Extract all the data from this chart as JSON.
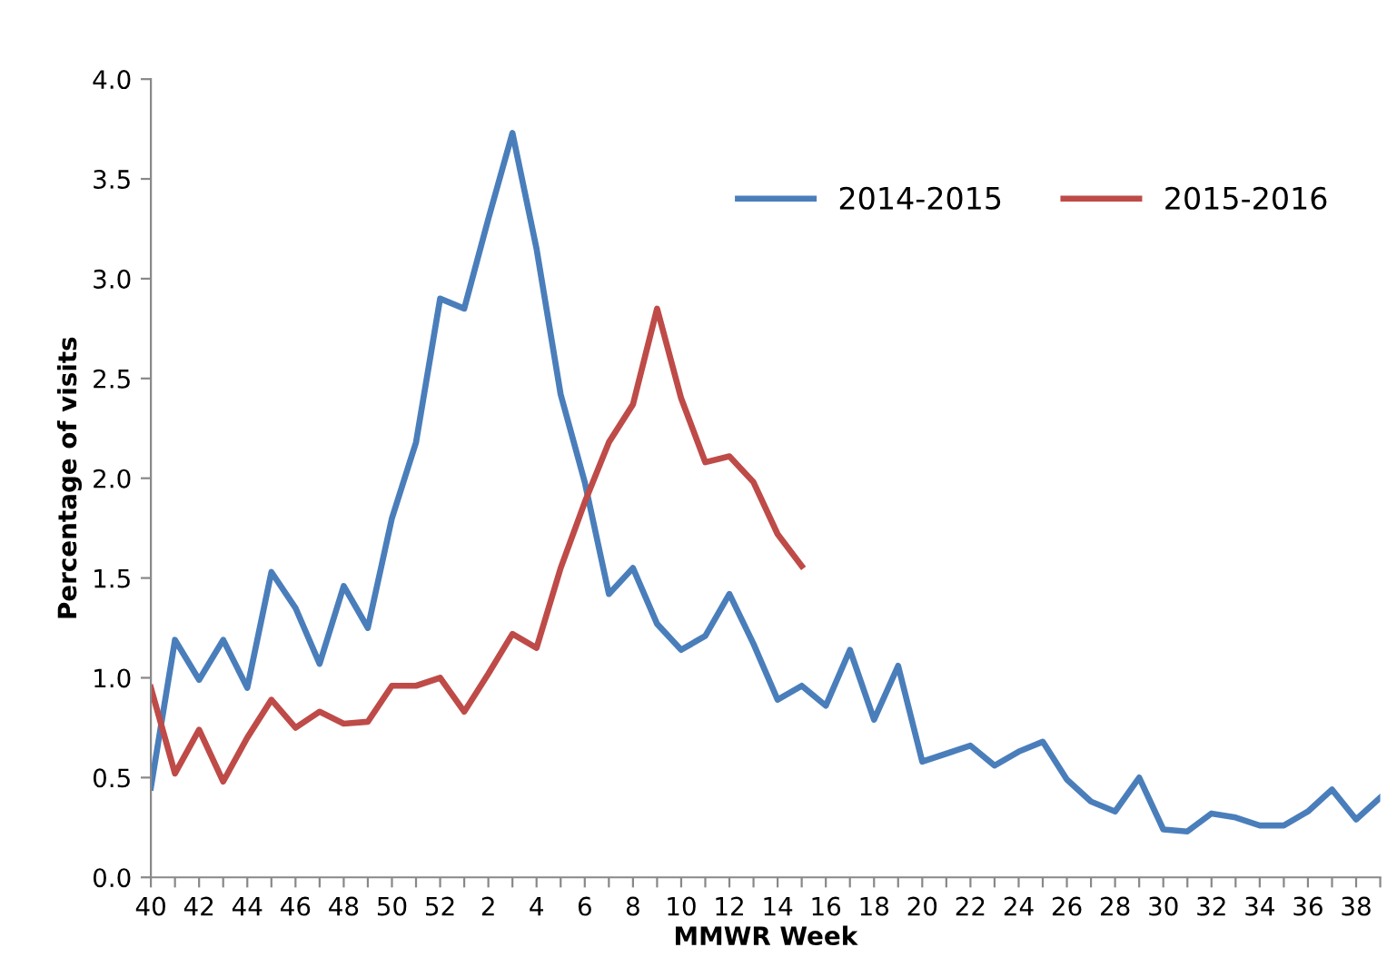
{
  "chart_data": {
    "type": "line",
    "xlabel": "MMWR Week",
    "ylabel": "Percentage of visits",
    "categories": [
      "40",
      null,
      "42",
      null,
      "44",
      null,
      "46",
      null,
      "48",
      null,
      "50",
      null,
      "52",
      null,
      "2",
      null,
      "4",
      null,
      "6",
      null,
      "8",
      null,
      "10",
      null,
      "12",
      null,
      "14",
      null,
      "16",
      null,
      "18",
      null,
      "20",
      null,
      "22",
      null,
      "24",
      null,
      "26",
      null,
      "28",
      null,
      "30",
      null,
      "32",
      null,
      "34",
      null,
      "36",
      null,
      "38",
      null
    ],
    "series": [
      {
        "name": "2014-2015",
        "color": "#4a7ebb",
        "values": [
          0.45,
          1.19,
          0.99,
          1.19,
          0.95,
          1.53,
          1.35,
          1.07,
          1.46,
          1.25,
          1.8,
          2.18,
          2.9,
          2.85,
          3.3,
          3.73,
          3.15,
          2.42,
          1.98,
          1.42,
          1.55,
          1.27,
          1.14,
          1.21,
          1.42,
          1.17,
          0.89,
          0.96,
          0.86,
          1.14,
          0.79,
          1.06,
          0.58,
          0.62,
          0.66,
          0.56,
          0.63,
          0.68,
          0.49,
          0.38,
          0.33,
          0.5,
          0.24,
          0.23,
          0.32,
          0.3,
          0.26,
          0.26,
          0.33,
          0.44,
          0.29,
          0.4
        ]
      },
      {
        "name": "2015-2016",
        "color": "#be4b48",
        "values": [
          0.95,
          0.52,
          0.74,
          0.48,
          0.7,
          0.89,
          0.75,
          0.83,
          0.77,
          0.78,
          0.96,
          0.96,
          1.0,
          0.83,
          1.02,
          1.22,
          1.15,
          1.55,
          1.88,
          2.18,
          2.37,
          2.85,
          2.4,
          2.08,
          2.11,
          1.98,
          1.72,
          1.56,
          null,
          null,
          null,
          null,
          null,
          null,
          null,
          null,
          null,
          null,
          null,
          null,
          null,
          null,
          null,
          null,
          null,
          null,
          null,
          null,
          null,
          null,
          null,
          null
        ]
      }
    ],
    "ylim": [
      0,
      4.0
    ],
    "yticks": [
      {
        "value": 0,
        "label": "0.0"
      },
      {
        "value": 0.5,
        "label": "0.5"
      },
      {
        "value": 1.0,
        "label": "1.0"
      },
      {
        "value": 1.5,
        "label": "1.5"
      },
      {
        "value": 2.0,
        "label": "2.0"
      },
      {
        "value": 2.5,
        "label": "2.5"
      },
      {
        "value": 3.0,
        "label": "3.0"
      },
      {
        "value": 3.5,
        "label": "3.5"
      },
      {
        "value": 4.0,
        "label": "4.0"
      }
    ],
    "grid": false,
    "legend": "top right",
    "marker": "none",
    "line_style": "solid"
  }
}
